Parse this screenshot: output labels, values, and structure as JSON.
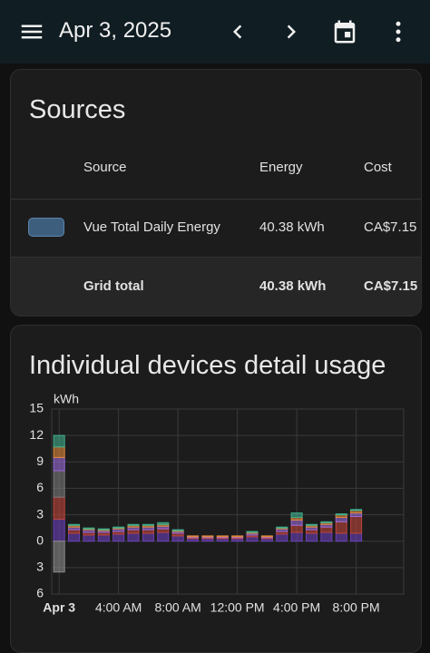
{
  "header": {
    "date": "Apr 3, 2025"
  },
  "sources": {
    "title": "Sources",
    "columns": [
      "Source",
      "Energy",
      "Cost"
    ],
    "rows": [
      [
        "Vue Total Daily Energy",
        "40.38 kWh",
        "CA$7.15"
      ]
    ],
    "total": [
      "Grid total",
      "40.38 kWh",
      "CA$7.15"
    ]
  },
  "chart_data": {
    "type": "bar",
    "stacked": true,
    "title": "Individual devices detail usage",
    "y_label": "kWh",
    "x": [
      0,
      1,
      2,
      3,
      4,
      5,
      6,
      7,
      8,
      9,
      10,
      11,
      12,
      13,
      14,
      15,
      16,
      17,
      18,
      19,
      20,
      21,
      22,
      23
    ],
    "xlim": [
      -0.5,
      23.2
    ],
    "xticks": [
      {
        "value": 0,
        "label": "Apr 3"
      },
      {
        "value": 4,
        "label": "4:00 AM"
      },
      {
        "value": 8,
        "label": "8:00 AM"
      },
      {
        "value": 12,
        "label": "12:00 PM"
      },
      {
        "value": 16,
        "label": "4:00 PM"
      },
      {
        "value": 20,
        "label": "8:00 PM"
      }
    ],
    "ylim": [
      -6,
      15
    ],
    "yticks": [
      15,
      12,
      9,
      6,
      3,
      0,
      {
        "value": -3,
        "label": "3"
      },
      {
        "value": -6,
        "label": "6"
      }
    ],
    "grid": true,
    "series": [
      {
        "color": "#6b40b8",
        "values": [
          2.5,
          0.9,
          0.7,
          0.7,
          0.8,
          0.9,
          0.9,
          1.0,
          0.6,
          0.3,
          0.3,
          0.3,
          0.3,
          0.5,
          0.3,
          0.8,
          1.0,
          0.9,
          1.0,
          0.9,
          0.9,
          null,
          null,
          null
        ]
      },
      {
        "color": "#c0453a",
        "values": [
          2.5,
          0.4,
          0.3,
          0.3,
          0.3,
          0.4,
          0.4,
          0.4,
          0.3,
          0.1,
          0.1,
          0.1,
          0.1,
          0.2,
          0.1,
          0.3,
          0.8,
          0.4,
          0.6,
          1.3,
          1.9,
          null,
          null,
          null
        ]
      },
      {
        "color": "#7a7a7a",
        "values": [
          3,
          0,
          0,
          0,
          0,
          0,
          0,
          0,
          0,
          0,
          0,
          0,
          0,
          0,
          0,
          0,
          0,
          0,
          0,
          0,
          0,
          null,
          null,
          null
        ]
      },
      {
        "color": "#9a6ad8",
        "values": [
          1.5,
          0.3,
          0.3,
          0.2,
          0.3,
          0.3,
          0.3,
          0.3,
          0.2,
          0.1,
          0.1,
          0.1,
          0.1,
          0.2,
          0.1,
          0.3,
          0.6,
          0.3,
          0.3,
          0.5,
          0.4,
          null,
          null,
          null
        ]
      },
      {
        "color": "#e0883a",
        "values": [
          1.2,
          0.2,
          0.1,
          0.1,
          0.1,
          0.2,
          0.2,
          0.2,
          0.1,
          0.1,
          0.1,
          0.1,
          0.1,
          0.1,
          0.1,
          0.1,
          0.3,
          0.2,
          0.2,
          0.3,
          0.3,
          null,
          null,
          null
        ]
      },
      {
        "color": "#3fae8c",
        "values": [
          1.3,
          0.1,
          0.1,
          0.1,
          0.1,
          0.1,
          0.1,
          0.2,
          0.1,
          0,
          0,
          0,
          0,
          0.1,
          0,
          0.1,
          0.5,
          0.1,
          0.1,
          0.1,
          0.1,
          null,
          null,
          null
        ]
      },
      {
        "color": "#8a8a8a",
        "values": [
          -3.5,
          0,
          0,
          0,
          0,
          0,
          0,
          0,
          0,
          0,
          0,
          0,
          0,
          0,
          0,
          0,
          0,
          0,
          0,
          0,
          0,
          null,
          null,
          null
        ]
      }
    ]
  }
}
